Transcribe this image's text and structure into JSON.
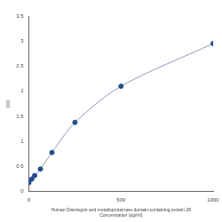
{
  "chart_data": {
    "type": "line",
    "title": "Human Disintegrin and metalloproteinase domain-containing protein 28",
    "x_label": "Concentration (pg/ml)",
    "y_label": "OD",
    "x": [
      0,
      15.6,
      31.25,
      62.5,
      125,
      250,
      500,
      1000
    ],
    "values": [
      0.18,
      0.25,
      0.32,
      0.45,
      0.78,
      1.38,
      2.1,
      2.95
    ],
    "color": "#1f4e8c",
    "marker": "circle",
    "xlim": [
      0,
      1000
    ],
    "xticks": [
      0,
      500,
      1000
    ],
    "ylim": [
      0,
      3.5
    ],
    "yticks": [
      0,
      0.5,
      1,
      1.5,
      2,
      2.5,
      3,
      3.5
    ],
    "grid": false
  }
}
